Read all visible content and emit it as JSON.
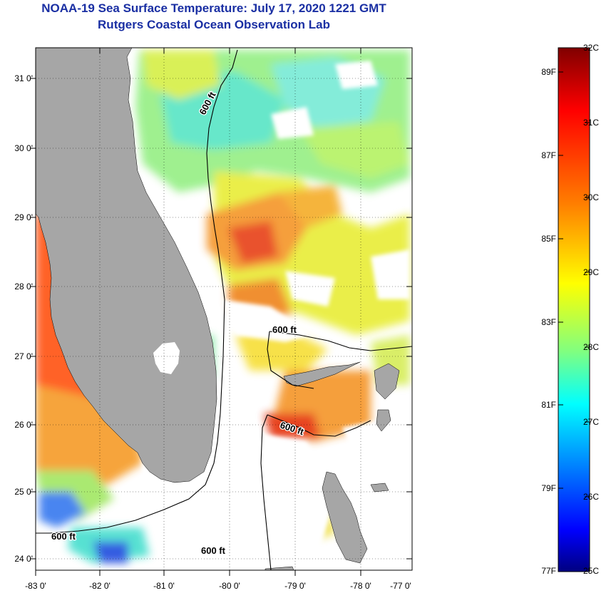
{
  "title": {
    "line1": "NOAA-19 Sea Surface Temperature:  July 17, 2020 1221 GMT",
    "line2": "Rutgers Coastal Ocean Observation Lab"
  },
  "map": {
    "lat_labels": [
      "31 0'",
      "30 0'",
      "29 0'",
      "28 0'",
      "27 0'",
      "26 0'",
      "25 0'",
      "24 0'"
    ],
    "lon_labels": [
      "-83 0'",
      "-82 0'",
      "-81 0'",
      "-80 0'",
      "-79 0'",
      "-78 0'",
      "-77 0'"
    ],
    "isobath_label": "600 ft",
    "colors": {
      "land": "#a6a6a6",
      "isobath": "#000000",
      "grid": "#000000"
    }
  },
  "colorbar": {
    "fahrenheit": [
      "89F",
      "87F",
      "85F",
      "83F",
      "81F",
      "79F",
      "77F"
    ],
    "celsius": [
      "32C",
      "31C",
      "30C",
      "29C",
      "28C",
      "27C",
      "26C",
      "25C"
    ],
    "gradient": [
      "#800000",
      "#ff0000",
      "#ff8000",
      "#ffff00",
      "#80ff80",
      "#00ffff",
      "#0080ff",
      "#0000ff",
      "#000080"
    ]
  }
}
